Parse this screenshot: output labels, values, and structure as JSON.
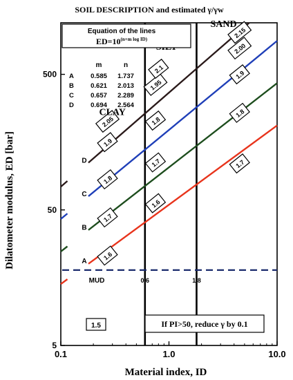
{
  "chart_data": {
    "type": "line",
    "title": "SOIL DESCRIPTION and estimated γ/γw",
    "xlabel": "Material index, ID",
    "ylabel": "Dilatometer modulus, ED [bar]",
    "xscale": "log",
    "yscale": "log",
    "xlim": [
      0.1,
      10.0
    ],
    "ylim": [
      5,
      1200
    ],
    "x_ticks": [
      "0.1",
      "1.0",
      "10.0"
    ],
    "y_ticks": [
      "5",
      "50",
      "500"
    ],
    "equation_box": {
      "title": "Equation of the lines",
      "equation": "ED=10",
      "exponent": "(n+m log ID)",
      "col_m": "m",
      "col_n": "n",
      "rows": [
        {
          "label": "A",
          "m": "0.585",
          "n": "1.737"
        },
        {
          "label": "B",
          "m": "0.621",
          "n": "2.013"
        },
        {
          "label": "C",
          "m": "0.657",
          "n": "2.289"
        },
        {
          "label": "D",
          "m": "0.694",
          "n": "2.564"
        }
      ]
    },
    "series": [
      {
        "name": "A",
        "m": 0.585,
        "n": 1.737,
        "color": "#e8341c"
      },
      {
        "name": "B",
        "m": 0.621,
        "n": 2.013,
        "color": "#1d4d1d"
      },
      {
        "name": "C",
        "m": 0.657,
        "n": 2.289,
        "color": "#1f3fb8"
      },
      {
        "name": "D",
        "m": 0.694,
        "n": 2.564,
        "color": "#2a1a1a"
      }
    ],
    "zones": [
      {
        "name": "CLAY",
        "x": 0.3,
        "y": 250
      },
      {
        "name": "SILT",
        "x": 0.95,
        "y": 760
      },
      {
        "name": "SAND",
        "x": 3.2,
        "y": 1120
      }
    ],
    "boundaries": [
      {
        "x": 0.6,
        "label": "0.6"
      },
      {
        "x": 1.8,
        "label": "1.8"
      }
    ],
    "mud_line": {
      "y": 18,
      "label": "MUD"
    },
    "gamma_labels": [
      {
        "value": "1.6",
        "x": 0.27,
        "y": 23
      },
      {
        "value": "1.7",
        "x": 0.27,
        "y": 44
      },
      {
        "value": "1.8",
        "x": 0.27,
        "y": 84
      },
      {
        "value": "1.9",
        "x": 0.27,
        "y": 158
      },
      {
        "value": "2.05",
        "x": 0.27,
        "y": 225
      },
      {
        "value": "1.6",
        "x": 0.75,
        "y": 56
      },
      {
        "value": "1.7",
        "x": 0.75,
        "y": 112
      },
      {
        "value": "1.8",
        "x": 0.75,
        "y": 228
      },
      {
        "value": "1.95",
        "x": 0.75,
        "y": 420
      },
      {
        "value": "2.1",
        "x": 0.8,
        "y": 550
      },
      {
        "value": "1.7",
        "x": 4.5,
        "y": 110
      },
      {
        "value": "1.8",
        "x": 4.5,
        "y": 260
      },
      {
        "value": "1.9",
        "x": 4.5,
        "y": 500
      },
      {
        "value": "2.00",
        "x": 4.5,
        "y": 780
      },
      {
        "value": "2.15",
        "x": 4.5,
        "y": 1020
      }
    ],
    "mud_gamma": "1.5",
    "note": "If PI>50, reduce γ by 0.1"
  }
}
